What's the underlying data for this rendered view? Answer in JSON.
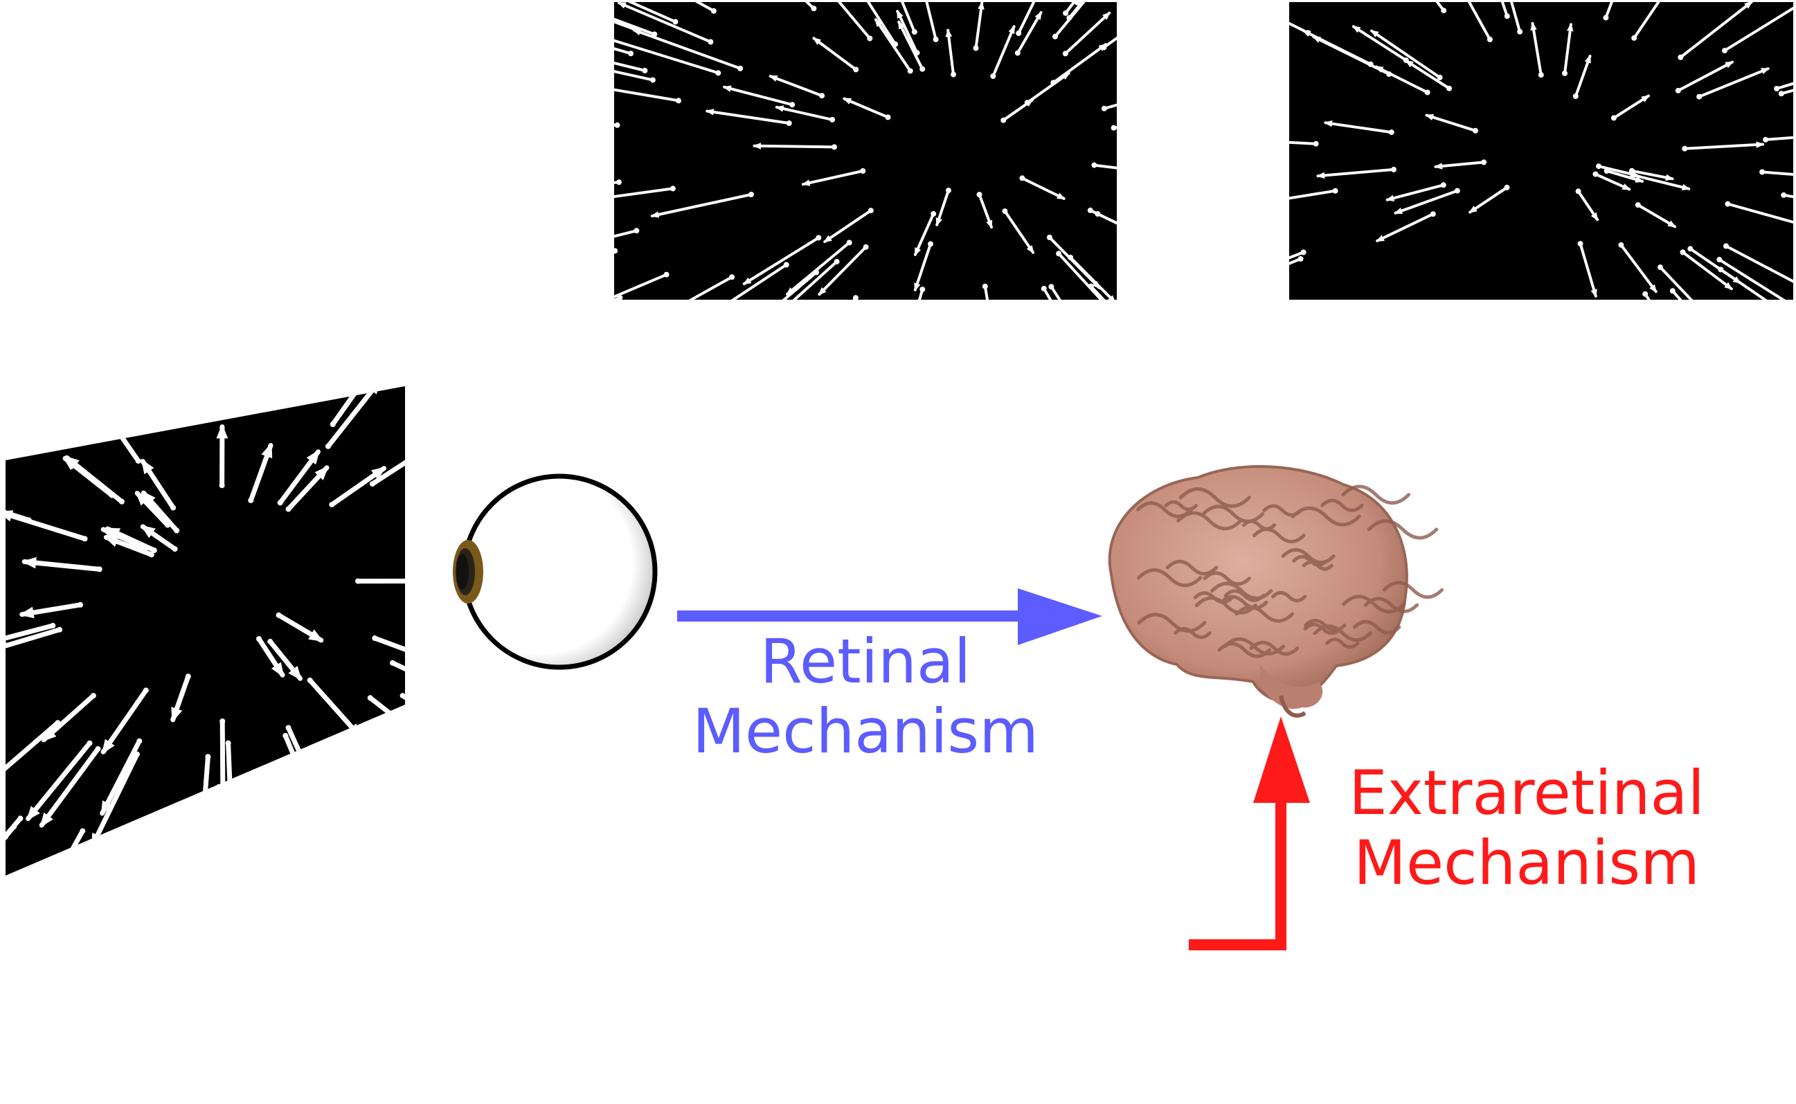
{
  "colors": {
    "retinal": "#5c5cff",
    "extraretinal": "#ff1a1a",
    "flow_background": "#000000",
    "flow_arrow": "#ffffff",
    "brain": "#c99483",
    "brain_dark": "#8f5c4f",
    "iris": "#7a5a1a",
    "pupil": "#1a1a1a"
  },
  "icons": {
    "eye": "eye-icon",
    "brain": "brain-icon"
  },
  "labels": {
    "retinal_line1": "Retinal",
    "retinal_line2": "Mechanism",
    "extraretinal_line1": "Extraretinal",
    "extraretinal_line2": "Mechanism"
  }
}
